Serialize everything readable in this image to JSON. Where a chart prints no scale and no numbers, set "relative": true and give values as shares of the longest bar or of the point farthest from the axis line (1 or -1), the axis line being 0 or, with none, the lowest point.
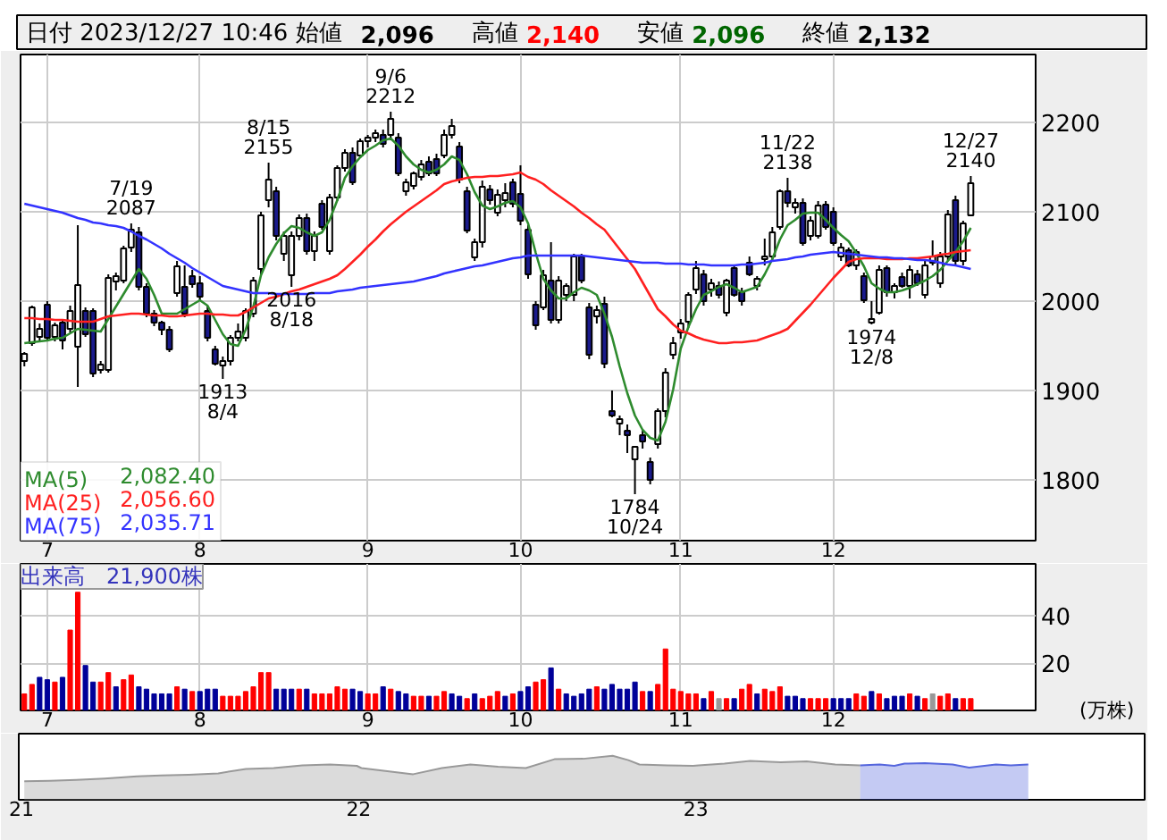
{
  "chart_data": [
    {
      "type": "candlestick",
      "title": "日付 2023/12/27 10:46 始値 2,096 高値 2,140 安値 2,096 終値 2,132",
      "categories": [
        null,
        null,
        null,
        "7",
        null,
        null,
        null,
        null,
        null,
        null,
        null,
        null,
        null,
        null,
        null,
        null,
        null,
        null,
        null,
        null,
        null,
        null,
        null,
        "8",
        null,
        null,
        null,
        null,
        null,
        null,
        null,
        null,
        null,
        null,
        null,
        null,
        null,
        null,
        null,
        null,
        null,
        null,
        null,
        null,
        null,
        "9",
        null,
        null,
        null,
        null,
        null,
        null,
        null,
        null,
        null,
        null,
        null,
        null,
        null,
        null,
        null,
        null,
        null,
        null,
        null,
        "10",
        null,
        null,
        null,
        null,
        null,
        null,
        null,
        null,
        null,
        null,
        null,
        null,
        null,
        null,
        null,
        null,
        null,
        null,
        null,
        null,
        "11",
        null,
        null,
        null,
        null,
        null,
        null,
        null,
        null,
        null,
        null,
        null,
        null,
        null,
        null,
        null,
        null,
        null,
        null,
        null,
        "12",
        null,
        null,
        null,
        null,
        null,
        null,
        null,
        null,
        null,
        null,
        null,
        null,
        null,
        null,
        null,
        null,
        null,
        null,
        null,
        null,
        null,
        null,
        null,
        null,
        null,
        null
      ],
      "ohlc": [
        [
          1933,
          1943,
          1927,
          1941
        ],
        [
          1953,
          1995,
          1950,
          1993
        ],
        [
          1960,
          1975,
          1955,
          1969
        ],
        [
          1996,
          2000,
          1955,
          1959
        ],
        [
          1960,
          1976,
          1955,
          1973
        ],
        [
          1976,
          1980,
          1946,
          1956
        ],
        [
          1969,
          1995,
          1965,
          1989
        ],
        [
          1949,
          2085,
          1904,
          2018
        ],
        [
          1989,
          1993,
          1960,
          1963
        ],
        [
          1989,
          1992,
          1915,
          1919
        ],
        [
          1923,
          1933,
          1919,
          1929
        ],
        [
          1923,
          2030,
          1920,
          2026
        ],
        [
          2022,
          2032,
          2012,
          2028
        ],
        [
          2023,
          2062,
          2020,
          2059
        ],
        [
          2060,
          2087,
          2055,
          2080
        ],
        [
          2077,
          2083,
          2012,
          2016
        ],
        [
          2016,
          2020,
          1982,
          1986
        ],
        [
          1986,
          1990,
          1972,
          1976
        ],
        [
          1976,
          1978,
          1962,
          1968
        ],
        [
          1968,
          1972,
          1943,
          1946
        ],
        [
          2009,
          2045,
          2005,
          2039
        ],
        [
          2016,
          2040,
          1982,
          1986
        ],
        [
          2028,
          2035,
          2015,
          2019
        ],
        [
          2020,
          2028,
          2000,
          2005
        ],
        [
          1989,
          1995,
          1955,
          1959
        ],
        [
          1946,
          1950,
          1928,
          1930
        ],
        [
          1928,
          1938,
          1913,
          1933
        ],
        [
          1933,
          1962,
          1928,
          1959
        ],
        [
          1959,
          1975,
          1955,
          1966
        ],
        [
          1959,
          1992,
          1955,
          1989
        ],
        [
          1986,
          2027,
          1982,
          2023
        ],
        [
          2036,
          2100,
          2030,
          2096
        ],
        [
          2113,
          2155,
          2105,
          2136
        ],
        [
          2123,
          2128,
          2068,
          2073
        ],
        [
          2053,
          2078,
          2045,
          2073
        ],
        [
          2029,
          2078,
          2016,
          2073
        ],
        [
          2073,
          2097,
          2068,
          2093
        ],
        [
          2093,
          2098,
          2052,
          2056
        ],
        [
          2056,
          2078,
          2045,
          2073
        ],
        [
          2109,
          2113,
          2080,
          2083
        ],
        [
          2056,
          2120,
          2052,
          2116
        ],
        [
          2116,
          2152,
          2112,
          2149
        ],
        [
          2149,
          2170,
          2145,
          2166
        ],
        [
          2166,
          2172,
          2130,
          2133
        ],
        [
          2163,
          2182,
          2160,
          2179
        ],
        [
          2179,
          2186,
          2172,
          2183
        ],
        [
          2183,
          2192,
          2178,
          2188
        ],
        [
          2186,
          2192,
          2172,
          2176
        ],
        [
          2186,
          2212,
          2180,
          2204
        ],
        [
          2183,
          2188,
          2140,
          2143
        ],
        [
          2123,
          2137,
          2118,
          2133
        ],
        [
          2129,
          2145,
          2125,
          2143
        ],
        [
          2139,
          2158,
          2135,
          2153
        ],
        [
          2156,
          2162,
          2140,
          2143
        ],
        [
          2159,
          2165,
          2140,
          2143
        ],
        [
          2163,
          2192,
          2160,
          2186
        ],
        [
          2186,
          2204,
          2182,
          2196
        ],
        [
          2173,
          2178,
          2132,
          2136
        ],
        [
          2123,
          2128,
          2076,
          2079
        ],
        [
          2049,
          2070,
          2045,
          2066
        ],
        [
          2066,
          2135,
          2060,
          2128
        ],
        [
          2125,
          2130,
          2108,
          2113
        ],
        [
          2099,
          2125,
          2095,
          2119
        ],
        [
          2113,
          2132,
          2105,
          2121
        ],
        [
          2133,
          2137,
          2105,
          2109
        ],
        [
          2120,
          2152,
          2085,
          2090
        ],
        [
          2080,
          2085,
          2025,
          2030
        ],
        [
          1996,
          2000,
          1968,
          1973
        ],
        [
          1993,
          2035,
          1990,
          2029
        ],
        [
          2023,
          2066,
          1975,
          1979
        ],
        [
          1979,
          2028,
          1975,
          2023
        ],
        [
          2007,
          2020,
          2000,
          2017
        ],
        [
          2007,
          2053,
          2000,
          2050
        ],
        [
          2050,
          2053,
          2020,
          2023
        ],
        [
          1993,
          1998,
          1935,
          1940
        ],
        [
          1983,
          1995,
          1975,
          1990
        ],
        [
          1997,
          2005,
          1925,
          1930
        ],
        [
          1877,
          1900,
          1870,
          1872
        ],
        [
          1863,
          1872,
          1850,
          1868
        ],
        [
          1855,
          1862,
          1830,
          1850
        ],
        [
          1823,
          1838,
          1784,
          1837
        ],
        [
          1850,
          1855,
          1835,
          1843
        ],
        [
          1820,
          1825,
          1795,
          1800
        ],
        [
          1840,
          1880,
          1835,
          1877
        ],
        [
          1877,
          1925,
          1870,
          1920
        ],
        [
          1940,
          1960,
          1935,
          1953
        ],
        [
          1965,
          1980,
          1958,
          1975
        ],
        [
          1977,
          2010,
          1970,
          2007
        ],
        [
          2013,
          2045,
          2008,
          2037
        ],
        [
          2030,
          2035,
          1995,
          2000
        ],
        [
          2013,
          2025,
          2005,
          2020
        ],
        [
          2017,
          2022,
          2003,
          2007
        ],
        [
          1987,
          2025,
          1983,
          2023
        ],
        [
          2037,
          2040,
          2005,
          2007
        ],
        [
          2010,
          2015,
          1995,
          2000
        ],
        [
          2043,
          2050,
          2028,
          2030
        ],
        [
          2017,
          2028,
          2012,
          2025
        ],
        [
          2047,
          2070,
          2040,
          2050
        ],
        [
          2050,
          2083,
          2045,
          2077
        ],
        [
          2083,
          2125,
          2080,
          2123
        ],
        [
          2123,
          2138,
          2105,
          2110
        ],
        [
          2105,
          2115,
          2098,
          2110
        ],
        [
          2110,
          2115,
          2062,
          2065
        ],
        [
          2073,
          2095,
          2068,
          2090
        ],
        [
          2073,
          2112,
          2070,
          2107
        ],
        [
          2108,
          2112,
          2080,
          2083
        ],
        [
          2100,
          2105,
          2062,
          2065
        ],
        [
          2050,
          2065,
          2045,
          2060
        ],
        [
          2057,
          2060,
          2038,
          2040
        ],
        [
          2040,
          2058,
          2035,
          2055
        ],
        [
          2028,
          2032,
          1998,
          2001
        ],
        [
          1976,
          2000,
          1974,
          1980
        ],
        [
          1987,
          2040,
          1985,
          2035
        ],
        [
          2037,
          2040,
          2005,
          2010
        ],
        [
          2010,
          2020,
          2003,
          2017
        ],
        [
          2027,
          2032,
          2015,
          2017
        ],
        [
          2017,
          2040,
          2003,
          2035
        ],
        [
          2030,
          2035,
          2017,
          2020
        ],
        [
          2007,
          2045,
          2003,
          2040
        ],
        [
          2043,
          2068,
          2040,
          2050
        ],
        [
          2020,
          2055,
          2015,
          2050
        ],
        [
          2050,
          2102,
          2045,
          2097
        ],
        [
          2113,
          2118,
          2040,
          2045
        ],
        [
          2045,
          2090,
          2040,
          2087
        ],
        [
          2096,
          2140,
          2096,
          2132
        ],
        null,
        null,
        null,
        null,
        null,
        null,
        null,
        null
      ],
      "colors": [
        "#ffffff",
        "#ffffff",
        "#ffffff",
        "#1a1a8c",
        "#ffffff",
        "#1a1a8c",
        "#ffffff",
        "#ffffff",
        "#1a1a8c",
        "#1a1a8c",
        "#ffffff",
        "#ffffff",
        "#ffffff",
        "#ffffff",
        "#ffffff",
        "#1a1a8c",
        "#1a1a8c",
        "#1a1a8c",
        "#1a1a8c",
        "#1a1a8c",
        "#ffffff",
        "#1a1a8c",
        "#1a1a8c",
        "#1a1a8c",
        "#1a1a8c",
        "#1a1a8c",
        "#ffffff",
        "#ffffff",
        "#ffffff",
        "#ffffff",
        "#ffffff",
        "#ffffff",
        "#ffffff",
        "#1a1a8c",
        "#ffffff",
        "#ffffff",
        "#ffffff",
        "#1a1a8c",
        "#ffffff",
        "#1a1a8c",
        "#ffffff",
        "#ffffff",
        "#ffffff",
        "#1a1a8c",
        "#ffffff",
        "#ffffff",
        "#ffffff",
        "#1a1a8c",
        "#ffffff",
        "#1a1a8c",
        "#ffffff",
        "#ffffff",
        "#ffffff",
        "#1a1a8c",
        "#1a1a8c",
        "#ffffff",
        "#ffffff",
        "#1a1a8c",
        "#1a1a8c",
        "#ffffff",
        "#ffffff",
        "#1a1a8c",
        "#ffffff",
        "#ffffff",
        "#1a1a8c",
        "#1a1a8c",
        "#1a1a8c",
        "#1a1a8c",
        "#ffffff",
        "#1a1a8c",
        "#ffffff",
        "#ffffff",
        "#ffffff",
        "#1a1a8c",
        "#1a1a8c",
        "#ffffff",
        "#1a1a8c",
        "#1a1a8c",
        "#ffffff",
        "#1a1a8c",
        "#ffffff",
        "#1a1a8c",
        "#1a1a8c",
        "#ffffff",
        "#ffffff",
        "#ffffff",
        "#ffffff",
        "#ffffff",
        "#ffffff",
        "#1a1a8c",
        "#ffffff",
        "#1a1a8c",
        "#ffffff",
        "#1a1a8c",
        "#1a1a8c",
        "#1a1a8c",
        "#ffffff",
        "#ffffff",
        "#ffffff",
        "#ffffff",
        "#1a1a8c",
        "#ffffff",
        "#1a1a8c",
        "#ffffff",
        "#ffffff",
        "#1a1a8c",
        "#1a1a8c",
        "#ffffff",
        "#1a1a8c",
        "#ffffff",
        "#1a1a8c",
        "#ffffff",
        "#ffffff",
        "#1a1a8c",
        "#ffffff",
        "#1a1a8c",
        "#ffffff",
        "#1a1a8c",
        "#ffffff",
        "#ffffff",
        "#ffffff",
        "#ffffff",
        "#1a1a8c",
        "#ffffff",
        "#ffffff",
        null,
        null,
        null,
        null,
        null,
        null,
        null,
        null
      ],
      "series": [
        {
          "name": "MA(5) 2,082.40",
          "type": "line",
          "color": "#2e8b2e",
          "values": [
            1953,
            1954,
            1955,
            1956,
            1958,
            1959,
            1964,
            1969,
            1968,
            1967,
            1966,
            1980,
            1994,
            2008,
            2022,
            2036,
            2025,
            2007,
            1986,
            1986,
            1986,
            1991,
            1996,
            2001,
            1995,
            1979,
            1963,
            1952,
            1950,
            1968,
            1994,
            2029,
            2049,
            2064,
            2076,
            2084,
            2082,
            2077,
            2073,
            2077,
            2091,
            2113,
            2138,
            2151,
            2161,
            2169,
            2174,
            2180,
            2182,
            2174,
            2162,
            2153,
            2147,
            2144,
            2147,
            2153,
            2162,
            2158,
            2142,
            2122,
            2107,
            2103,
            2106,
            2110,
            2112,
            2105,
            2087,
            2054,
            2025,
            2012,
            2003,
            2003,
            2010,
            2015,
            2012,
            2007,
            1986,
            1960,
            1927,
            1897,
            1872,
            1856,
            1847,
            1844,
            1865,
            1901,
            1947,
            1971,
            1991,
            2007,
            2011,
            2016,
            2019,
            2015,
            2010,
            2013,
            2016,
            2030,
            2047,
            2069,
            2085,
            2091,
            2098,
            2099,
            2099,
            2091,
            2082,
            2074,
            2067,
            2054,
            2039,
            2020,
            2014,
            2010,
            2010,
            2012,
            2015,
            2019,
            2023,
            2028,
            2035,
            2045,
            2055,
            2067,
            2082,
            null,
            null,
            null,
            null,
            null,
            null,
            null,
            null
          ]
        },
        {
          "name": "MA(25) 2,056.60",
          "type": "line",
          "color": "#ff2020",
          "values": [
            1981,
            1981,
            1980,
            1980,
            1979,
            1979,
            1978,
            1977,
            1977,
            1977,
            1980,
            1983,
            1984,
            1985,
            1986,
            1986,
            1985,
            1984,
            1984,
            1983,
            1983,
            1984,
            1985,
            1986,
            1986,
            1985,
            1985,
            1984,
            1984,
            1988,
            1993,
            1998,
            2003,
            2005,
            2008,
            2011,
            2013,
            2016,
            2019,
            2022,
            2025,
            2029,
            2036,
            2044,
            2052,
            2061,
            2069,
            2078,
            2086,
            2093,
            2100,
            2106,
            2112,
            2118,
            2124,
            2131,
            2134,
            2136,
            2138,
            2139,
            2139,
            2140,
            2140,
            2141,
            2142,
            2144,
            2139,
            2136,
            2131,
            2124,
            2118,
            2112,
            2106,
            2099,
            2093,
            2086,
            2080,
            2069,
            2058,
            2047,
            2036,
            2021,
            2006,
            1991,
            1983,
            1974,
            1967,
            1964,
            1960,
            1957,
            1955,
            1953,
            1953,
            1954,
            1954,
            1955,
            1956,
            1959,
            1962,
            1965,
            1969,
            1978,
            1987,
            1996,
            2006,
            2016,
            2026,
            2035,
            2044,
            2047,
            2048,
            2048,
            2048,
            2047,
            2047,
            2047,
            2048,
            2048,
            2049,
            2050,
            2052,
            2053,
            2055,
            2056,
            2057,
            null,
            null,
            null,
            null,
            null,
            null,
            null,
            null
          ]
        },
        {
          "name": "MA(75) 2,035.71",
          "type": "line",
          "color": "#3333ff",
          "values": [
            2109,
            2107,
            2105,
            2103,
            2101,
            2099,
            2096,
            2093,
            2091,
            2088,
            2087,
            2085,
            2084,
            2082,
            2078,
            2073,
            2069,
            2064,
            2059,
            2053,
            2048,
            2043,
            2037,
            2032,
            2027,
            2022,
            2017,
            2015,
            2013,
            2011,
            2009,
            2009,
            2009,
            2008,
            2008,
            2008,
            2008,
            2008,
            2009,
            2009,
            2009,
            2011,
            2012,
            2013,
            2015,
            2016,
            2017,
            2018,
            2019,
            2020,
            2021,
            2022,
            2024,
            2026,
            2028,
            2031,
            2033,
            2035,
            2037,
            2039,
            2040,
            2042,
            2044,
            2046,
            2048,
            2049,
            2051,
            2051,
            2051,
            2051,
            2051,
            2051,
            2051,
            2051,
            2050,
            2049,
            2048,
            2047,
            2046,
            2045,
            2044,
            2043,
            2043,
            2043,
            2042,
            2042,
            2042,
            2041,
            2041,
            2041,
            2040,
            2040,
            2040,
            2040,
            2041,
            2041,
            2042,
            2043,
            2045,
            2046,
            2047,
            2049,
            2050,
            2052,
            2053,
            2054,
            2055,
            2054,
            2053,
            2052,
            2051,
            2050,
            2049,
            2049,
            2048,
            2048,
            2047,
            2046,
            2046,
            2045,
            2043,
            2041,
            2040,
            2038,
            2036,
            null,
            null,
            null,
            null,
            null,
            null,
            null,
            null
          ]
        }
      ],
      "ylim": [
        1732,
        2276
      ],
      "yticks": [
        1800,
        1900,
        2000,
        2100,
        2200
      ],
      "grid": true,
      "legend": "bottom left",
      "annotations": [
        {
          "text": "7/19\n2087",
          "y": 2087
        },
        {
          "text": "1913\n8/4",
          "y": 1913
        },
        {
          "text": "8/15\n2155",
          "y": 2155
        },
        {
          "text": "2016\n8/18",
          "y": 2016
        },
        {
          "text": "9/6\n2212",
          "y": 2212
        },
        {
          "text": "1784\n10/24",
          "y": 1784
        },
        {
          "text": "11/22\n2138",
          "y": 2138
        },
        {
          "text": "1974\n12/8",
          "y": 1974
        },
        {
          "text": "12/27\n2140",
          "y": 2140
        }
      ]
    },
    {
      "type": "bar",
      "title": "出来高　21,900株",
      "ylabel": "(万株)",
      "categories": [
        null,
        null,
        null,
        "7",
        null,
        null,
        null,
        null,
        null,
        null,
        null,
        null,
        null,
        null,
        null,
        null,
        null,
        null,
        null,
        null,
        null,
        null,
        null,
        "8",
        null,
        null,
        null,
        null,
        null,
        null,
        null,
        null,
        null,
        null,
        null,
        null,
        null,
        null,
        null,
        null,
        null,
        null,
        null,
        null,
        null,
        "9",
        null,
        null,
        null,
        null,
        null,
        null,
        null,
        null,
        null,
        null,
        null,
        null,
        null,
        null,
        null,
        null,
        null,
        null,
        null,
        "10",
        null,
        null,
        null,
        null,
        null,
        null,
        null,
        null,
        null,
        null,
        null,
        null,
        null,
        null,
        null,
        null,
        null,
        null,
        null,
        null,
        "11",
        null,
        null,
        null,
        null,
        null,
        null,
        null,
        null,
        null,
        null,
        null,
        null,
        null,
        null,
        null,
        null,
        null,
        null,
        null,
        "12",
        null,
        null,
        null,
        null,
        null,
        null,
        null,
        null,
        null,
        null,
        null,
        null,
        null,
        null,
        null,
        null,
        null,
        null,
        null,
        null,
        null,
        null,
        null,
        null,
        null,
        null
      ],
      "values": [
        7,
        11,
        14,
        13,
        12,
        14,
        34,
        50,
        19,
        12,
        12,
        16,
        10,
        13,
        15,
        10,
        9,
        7,
        7,
        7,
        10,
        9,
        8,
        8,
        9,
        9,
        6,
        6,
        6,
        8,
        10,
        16,
        16,
        9,
        9,
        9,
        9,
        9,
        7,
        7,
        7,
        10,
        9,
        9,
        8,
        7,
        7,
        10,
        9,
        8,
        7,
        6,
        6,
        6,
        6,
        8,
        7,
        6,
        5,
        7,
        5,
        6,
        8,
        6,
        7,
        8,
        10,
        12,
        13,
        18,
        9,
        7,
        6,
        7,
        9,
        10,
        9,
        11,
        9,
        9,
        12,
        8,
        8,
        11,
        26,
        9,
        8,
        7,
        7,
        5,
        8,
        5,
        5,
        5,
        9,
        11,
        7,
        9,
        8,
        10,
        6,
        6,
        5,
        5,
        5,
        5,
        5,
        5,
        5,
        7,
        6,
        8,
        7,
        5,
        6,
        6,
        7,
        6,
        5,
        7,
        6,
        7,
        5,
        5,
        5,
        null,
        null,
        null,
        null,
        null,
        null,
        null,
        null
      ],
      "colors": [
        "#ff0000",
        "#ff0000",
        "#000099",
        "#000099",
        "#ff0000",
        "#000099",
        "#ff0000",
        "#ff0000",
        "#000099",
        "#000099",
        "#ff0000",
        "#ff0000",
        "#000099",
        "#ff0000",
        "#ff0000",
        "#000099",
        "#000099",
        "#000099",
        "#000099",
        "#000099",
        "#ff0000",
        "#000099",
        "#ff0000",
        "#000099",
        "#000099",
        "#000099",
        "#ff0000",
        "#ff0000",
        "#ff0000",
        "#ff0000",
        "#ff0000",
        "#ff0000",
        "#ff0000",
        "#000099",
        "#000099",
        "#000099",
        "#ff0000",
        "#000099",
        "#ff0000",
        "#ff0000",
        "#ff0000",
        "#ff0000",
        "#ff0000",
        "#000099",
        "#000099",
        "#ff0000",
        "#ff0000",
        "#000099",
        "#ff0000",
        "#000099",
        "#000099",
        "#ff0000",
        "#ff0000",
        "#000099",
        "#ff0000",
        "#ff0000",
        "#000099",
        "#000099",
        "#ff0000",
        "#000099",
        "#ff0000",
        "#ff0000",
        "#ff0000",
        "#000099",
        "#ff0000",
        "#000099",
        "#000099",
        "#ff0000",
        "#ff0000",
        "#000099",
        "#ff0000",
        "#000099",
        "#000099",
        "#000099",
        "#000099",
        "#ff0000",
        "#000099",
        "#000099",
        "#000099",
        "#000099",
        "#000099",
        "#ff0000",
        "#000099",
        "#ff0000",
        "#ff0000",
        "#ff0000",
        "#ff0000",
        "#ff0000",
        "#ff0000",
        "#000099",
        "#ff0000",
        "#999999",
        "#ff0000",
        "#000099",
        "#ff0000",
        "#ff0000",
        "#000099",
        "#ff0000",
        "#ff0000",
        "#ff0000",
        "#000099",
        "#000099",
        "#000099",
        "#ff0000",
        "#ff0000",
        "#ff0000",
        "#000099",
        "#000099",
        "#000099",
        "#ff0000",
        "#ff0000",
        "#000099",
        "#ff0000",
        "#000099",
        "#000099",
        "#000099",
        "#ff0000",
        "#000099",
        "#ff0000",
        "#999999",
        "#ff0000",
        "#ff0000",
        "#000099",
        "#ff0000",
        "#ff0000",
        null,
        null,
        null,
        null,
        null,
        null,
        null,
        null
      ],
      "ylim": [
        0,
        62
      ],
      "yticks": [
        20,
        40
      ],
      "grid": true
    },
    {
      "type": "area",
      "relative": true,
      "series": [
        {
          "color": "#999999",
          "x": [
            "2021-01-04",
            "2021-02-01",
            "2021-03-01",
            "2021-04-01",
            "2021-05-06",
            "2021-06-01",
            "2021-07-01",
            "2021-08-02",
            "2021-09-01",
            "2021-10-01",
            "2021-11-01",
            "2021-12-01",
            "2021-12-30",
            "2022-01-04",
            "2022-02-01",
            "2022-03-01",
            "2022-04-01",
            "2022-05-02",
            "2022-06-01",
            "2022-07-01",
            "2022-08-01",
            "2022-09-01",
            "2022-10-03",
            "2022-10-20",
            "2022-11-01",
            "2022-12-01",
            "2022-12-29",
            "2023-01-04",
            "2023-02-01",
            "2023-03-01",
            "2023-04-03",
            "2023-05-01",
            "2023-06-01",
            "2023-06-28"
          ],
          "values": [
            0.42,
            0.43,
            0.45,
            0.48,
            0.53,
            0.55,
            0.57,
            0.6,
            0.7,
            0.72,
            0.78,
            0.8,
            0.77,
            0.72,
            0.65,
            0.58,
            0.72,
            0.8,
            0.75,
            0.72,
            0.92,
            0.93,
            1,
            0.9,
            0.8,
            0.78,
            0.77,
            0.78,
            0.82,
            0.88,
            0.85,
            0.87,
            0.8,
            0.78
          ]
        },
        {
          "color": "#5566dd",
          "x": [
            "2023-06-28",
            "2023-07-19",
            "2023-08-04",
            "2023-08-15",
            "2023-09-06",
            "2023-10-06",
            "2023-10-24",
            "2023-11-22",
            "2023-12-08",
            "2023-12-27"
          ],
          "values": [
            0.78,
            0.8,
            0.77,
            0.82,
            0.83,
            0.8,
            0.73,
            0.8,
            0.78,
            0.8
          ]
        }
      ],
      "xlim": [
        "2020-12-29",
        "2024-05-01"
      ],
      "xticks": [
        {
          "value": "2021-01-01",
          "label": "21"
        },
        {
          "value": "2022-01-01",
          "label": "22"
        },
        {
          "value": "2023-01-01",
          "label": "23"
        }
      ]
    }
  ]
}
